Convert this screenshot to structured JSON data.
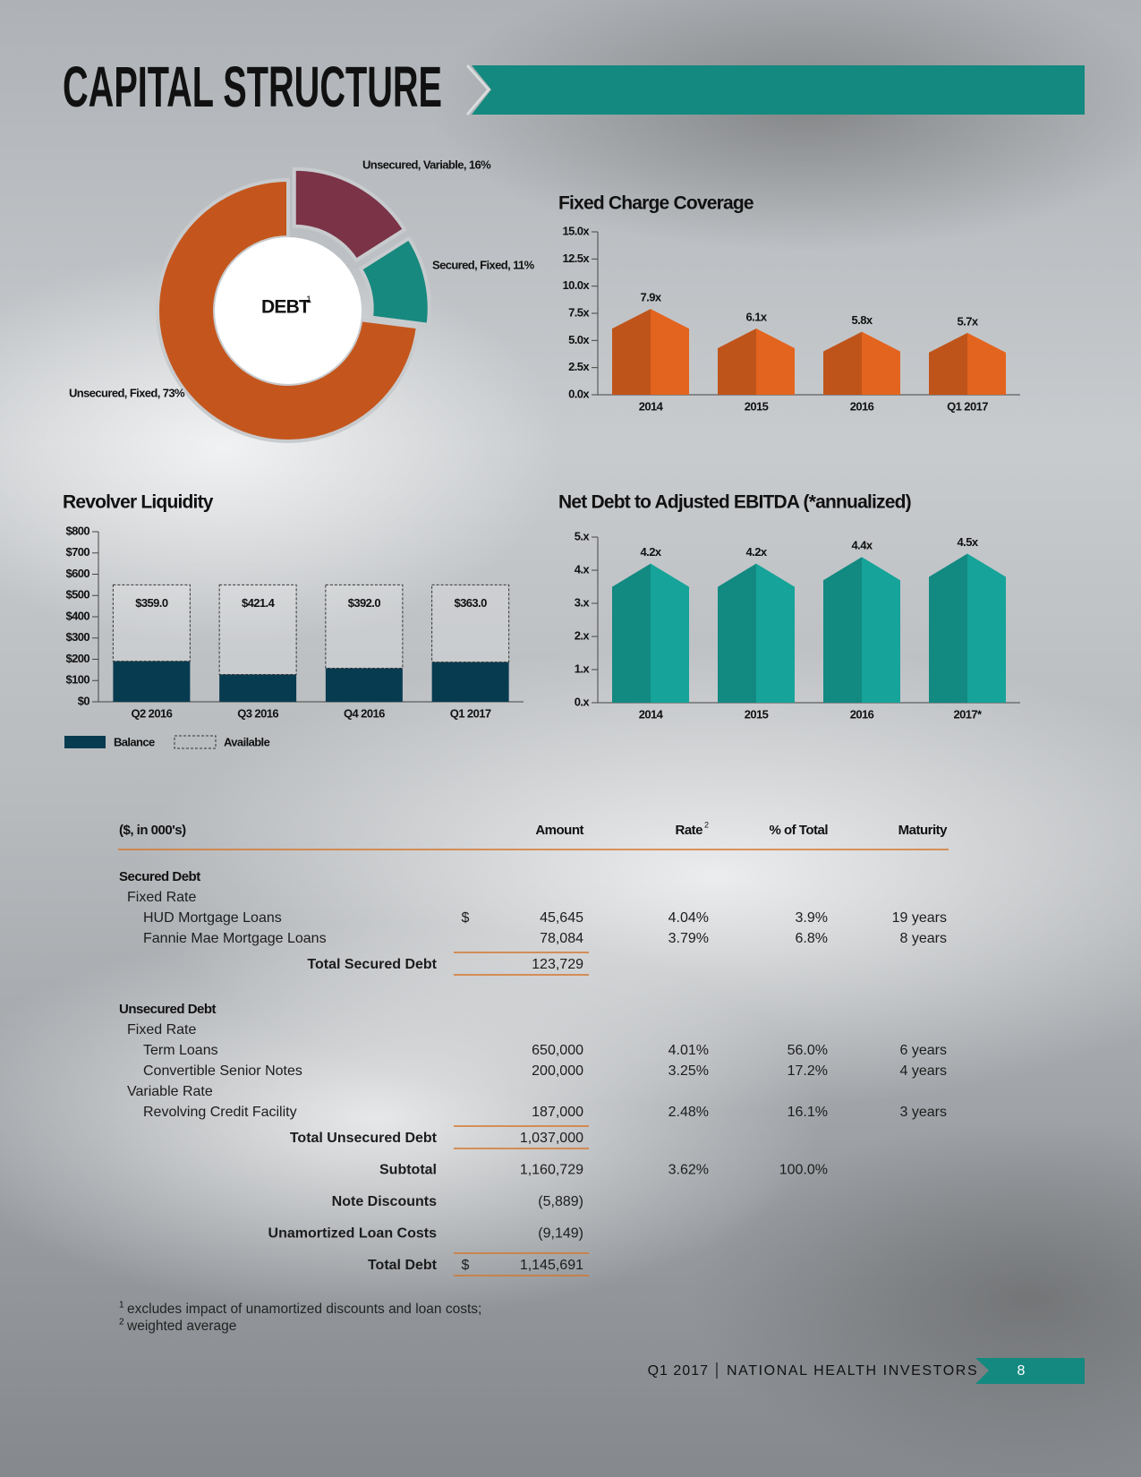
{
  "header": {
    "title": "CAPITAL STRUCTURE"
  },
  "chart_data": [
    {
      "type": "pie",
      "center_label": "DEBT",
      "center_label_note": "1",
      "categories": [
        "Unsecured, Variable, 16%",
        "Secured, Fixed, 11%",
        "Unsecured, Fixed, 73%"
      ],
      "values": [
        16,
        11,
        73
      ],
      "colors": [
        "#7b3347",
        "#17897f",
        "#c4561d"
      ]
    },
    {
      "type": "bar",
      "title": "Fixed Charge Coverage",
      "categories": [
        "2014",
        "2015",
        "2016",
        "Q1 2017"
      ],
      "values": [
        7.9,
        6.1,
        5.8,
        5.7
      ],
      "value_labels": [
        "7.9x",
        "6.1x",
        "5.8x",
        "5.7x"
      ],
      "color": "#e3641f",
      "ylim": [
        0,
        15
      ],
      "yticks": [
        {
          "value": 0,
          "label": "0.0x"
        },
        {
          "value": 2.5,
          "label": "2.5x"
        },
        {
          "value": 5,
          "label": "5.0x"
        },
        {
          "value": 7.5,
          "label": "7.5x"
        },
        {
          "value": 10,
          "label": "10.0x"
        },
        {
          "value": 12.5,
          "label": "12.5x"
        },
        {
          "value": 15,
          "label": "15.0x"
        }
      ]
    },
    {
      "type": "stacked_bar",
      "title": "Revolver Liquidity",
      "categories": [
        "Q2 2016",
        "Q3 2016",
        "Q4 2016",
        "Q1 2017"
      ],
      "series": [
        {
          "name": "Balance",
          "color": "#073b50",
          "values": [
            191,
            128.6,
            158,
            187
          ]
        },
        {
          "name": "Available",
          "color": "#333333",
          "values": [
            359,
            421.4,
            392,
            363
          ],
          "value_labels": [
            "$359.0",
            "$421.4",
            "$392.0",
            "$363.0"
          ]
        }
      ],
      "ylim": [
        0,
        800
      ],
      "yticks": [
        {
          "value": 0,
          "label": "$0"
        },
        {
          "value": 100,
          "label": "$100"
        },
        {
          "value": 200,
          "label": "$200"
        },
        {
          "value": 300,
          "label": "$300"
        },
        {
          "value": 400,
          "label": "$400"
        },
        {
          "value": 500,
          "label": "$500"
        },
        {
          "value": 600,
          "label": "$600"
        },
        {
          "value": 700,
          "label": "$700"
        },
        {
          "value": 800,
          "label": "$800"
        }
      ]
    },
    {
      "type": "bar",
      "title": "Net Debt to Adjusted EBITDA (*annualized)",
      "categories": [
        "2014",
        "2015",
        "2016",
        "2017*"
      ],
      "values": [
        4.2,
        4.2,
        4.4,
        4.5
      ],
      "value_labels": [
        "4.2x",
        "4.2x",
        "4.4x",
        "4.5x"
      ],
      "color": "#16a399",
      "ylim": [
        0,
        5
      ],
      "yticks": [
        {
          "value": 0,
          "label": "0.x"
        },
        {
          "value": 1,
          "label": "1.x"
        },
        {
          "value": 2,
          "label": "2.x"
        },
        {
          "value": 3,
          "label": "3.x"
        },
        {
          "value": 4,
          "label": "4.x"
        },
        {
          "value": 5,
          "label": "5.x"
        }
      ]
    }
  ],
  "table": {
    "header": [
      "($, in 000's)",
      "Amount",
      "Rate",
      "% of Total",
      "Maturity"
    ],
    "rate_note": "2",
    "sections": [
      {
        "title": "Secured Debt",
        "groups": [
          {
            "title": "Fixed Rate",
            "rows": [
              {
                "label": "HUD Mortgage Loans",
                "currency": "$",
                "amount": "45,645",
                "rate": "4.04%",
                "pct": "3.9%",
                "maturity": "19 years"
              },
              {
                "label": "Fannie Mae Mortgage Loans",
                "amount": "78,084",
                "rate": "3.79%",
                "pct": "6.8%",
                "maturity": "8 years"
              }
            ]
          }
        ],
        "total": {
          "label": "Total Secured Debt",
          "amount": "123,729"
        }
      },
      {
        "title": "Unsecured Debt",
        "groups": [
          {
            "title": "Fixed Rate",
            "rows": [
              {
                "label": "Term Loans",
                "amount": "650,000",
                "rate": "4.01%",
                "pct": "56.0%",
                "maturity": "6 years"
              },
              {
                "label": "Convertible Senior Notes",
                "amount": "200,000",
                "rate": "3.25%",
                "pct": "17.2%",
                "maturity": "4 years"
              }
            ]
          },
          {
            "title": "Variable Rate",
            "rows": [
              {
                "label": "Revolving Credit Facility",
                "amount": "187,000",
                "rate": "2.48%",
                "pct": "16.1%",
                "maturity": "3 years"
              }
            ]
          }
        ],
        "total": {
          "label": "Total Unsecured Debt",
          "amount": "1,037,000"
        }
      }
    ],
    "summary": [
      {
        "label": "Subtotal",
        "amount": "1,160,729",
        "rate": "3.62%",
        "pct": "100.0%"
      },
      {
        "label": "Note Discounts",
        "amount": "(5,889)"
      },
      {
        "label": "Unamortized Loan Costs",
        "amount": "(9,149)"
      }
    ],
    "grand_total": {
      "label": "Total Debt",
      "currency": "$",
      "amount": "1,145,691"
    }
  },
  "footnotes": [
    {
      "marker": "1",
      "text": "excludes impact of unamortized discounts and loan costs;"
    },
    {
      "marker": "2",
      "text": "weighted average"
    }
  ],
  "footer": {
    "period": "Q1 2017",
    "company": "NATIONAL HEALTH INVESTORS",
    "page_number": "8"
  }
}
